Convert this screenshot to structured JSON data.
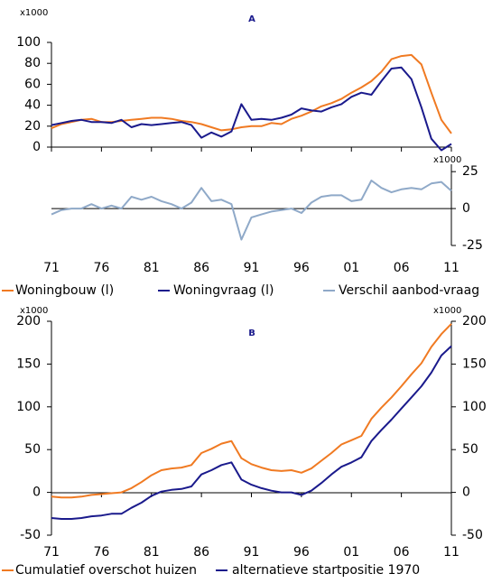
{
  "chart_data": [
    {
      "type": "line",
      "panel_label": "A",
      "y_unit": "x1000",
      "y2_unit": "x1000",
      "x": [
        1971,
        1972,
        1973,
        1974,
        1975,
        1976,
        1977,
        1978,
        1979,
        1980,
        1981,
        1982,
        1983,
        1984,
        1985,
        1986,
        1987,
        1988,
        1989,
        1990,
        1991,
        1992,
        1993,
        1994,
        1995,
        1996,
        1997,
        1998,
        1999,
        2000,
        2001,
        2002,
        2003,
        2004,
        2005,
        2006,
        2007,
        2008,
        2009,
        2010,
        2011
      ],
      "xlim": [
        1971,
        2011
      ],
      "xticks": [
        {
          "value": 1971,
          "label": "71"
        },
        {
          "value": 1976,
          "label": "76"
        },
        {
          "value": 1981,
          "label": "81"
        },
        {
          "value": 1986,
          "label": "86"
        },
        {
          "value": 1991,
          "label": "91"
        },
        {
          "value": 1996,
          "label": "96"
        },
        {
          "value": 2001,
          "label": "01"
        },
        {
          "value": 2006,
          "label": "06"
        },
        {
          "value": 2011,
          "label": "11"
        }
      ],
      "ylim": [
        0,
        100
      ],
      "yticks": [
        0,
        20,
        40,
        60,
        80,
        100
      ],
      "y2lim": [
        -25,
        30
      ],
      "y2ticks": [
        -25,
        0,
        25
      ],
      "series": [
        {
          "name": "Woningbouw (l)",
          "color": "#f07a22",
          "values": [
            18,
            22,
            24,
            26,
            27,
            24,
            24,
            25,
            26,
            27,
            28,
            28,
            27,
            25,
            24,
            22,
            19,
            16,
            17,
            19,
            20,
            20,
            23,
            22,
            27,
            30,
            34,
            39,
            42,
            46,
            52,
            57,
            63,
            72,
            84,
            87,
            88,
            79,
            52,
            26,
            13
          ]
        },
        {
          "name": "Woningvraag (l)",
          "color": "#1a1a8c",
          "values": [
            21,
            23,
            25,
            26,
            24,
            24,
            23,
            26,
            19,
            22,
            21,
            22,
            23,
            24,
            21,
            9,
            14,
            10,
            15,
            41,
            26,
            27,
            26,
            28,
            31,
            37,
            35,
            34,
            38,
            41,
            48,
            52,
            50,
            63,
            75,
            76,
            65,
            38,
            8,
            -3,
            3
          ]
        },
        {
          "name": "Verschil aanbod-vraag",
          "color": "#8fa9c8",
          "axis": "y2",
          "values": [
            -4,
            -1,
            0,
            0,
            3,
            0,
            2,
            0,
            8,
            6,
            8,
            5,
            3,
            0,
            4,
            14,
            5,
            6,
            3,
            -21,
            -6,
            -4,
            -2,
            -1,
            0,
            -3,
            4,
            8,
            9,
            9,
            5,
            6,
            19,
            14,
            11,
            13,
            14,
            13,
            17,
            18,
            12
          ]
        }
      ]
    },
    {
      "type": "line",
      "panel_label": "B",
      "y_unit": "x1000",
      "y2_unit": "x1000",
      "x": [
        1971,
        1972,
        1973,
        1974,
        1975,
        1976,
        1977,
        1978,
        1979,
        1980,
        1981,
        1982,
        1983,
        1984,
        1985,
        1986,
        1987,
        1988,
        1989,
        1990,
        1991,
        1992,
        1993,
        1994,
        1995,
        1996,
        1997,
        1998,
        1999,
        2000,
        2001,
        2002,
        2003,
        2004,
        2005,
        2006,
        2007,
        2008,
        2009,
        2010,
        2011
      ],
      "xlim": [
        1971,
        2011
      ],
      "xticks": [
        {
          "value": 1971,
          "label": "71"
        },
        {
          "value": 1976,
          "label": "76"
        },
        {
          "value": 1981,
          "label": "81"
        },
        {
          "value": 1986,
          "label": "86"
        },
        {
          "value": 1991,
          "label": "91"
        },
        {
          "value": 1996,
          "label": "96"
        },
        {
          "value": 2001,
          "label": "01"
        },
        {
          "value": 2006,
          "label": "06"
        },
        {
          "value": 2011,
          "label": "11"
        }
      ],
      "ylim": [
        -50,
        200
      ],
      "yticks": [
        -50,
        0,
        50,
        100,
        150,
        200
      ],
      "y2lim": [
        -50,
        200
      ],
      "y2ticks": [
        -50,
        0,
        50,
        100,
        150,
        200
      ],
      "series": [
        {
          "name": "Cumulatief overschot huizen",
          "color": "#f07a22",
          "values": [
            -5,
            -6,
            -6,
            -5,
            -3,
            -2,
            -1,
            0,
            5,
            12,
            20,
            26,
            28,
            29,
            32,
            46,
            51,
            57,
            60,
            40,
            33,
            29,
            26,
            25,
            26,
            23,
            28,
            37,
            46,
            56,
            61,
            66,
            86,
            99,
            111,
            124,
            138,
            151,
            170,
            185,
            197
          ]
        },
        {
          "name": "alternatieve startpositie 1970",
          "color": "#1a1a8c",
          "values": [
            -30,
            -31,
            -31,
            -30,
            -28,
            -27,
            -25,
            -25,
            -18,
            -12,
            -4,
            1,
            3,
            4,
            7,
            21,
            26,
            32,
            35,
            15,
            9,
            5,
            2,
            0,
            0,
            -3,
            2,
            11,
            21,
            30,
            35,
            41,
            60,
            73,
            85,
            98,
            111,
            124,
            140,
            160,
            171
          ]
        }
      ]
    }
  ]
}
